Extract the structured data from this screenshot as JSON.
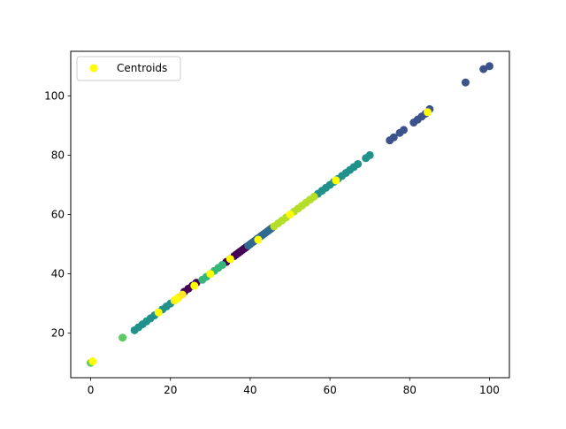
{
  "chart_data": {
    "type": "scatter",
    "title": "",
    "xlabel": "",
    "ylabel": "",
    "xlim": [
      -5,
      105
    ],
    "ylim": [
      5.0,
      115.0
    ],
    "xticks": [
      0,
      20,
      40,
      60,
      80,
      100
    ],
    "yticks": [
      20,
      40,
      60,
      80,
      100
    ],
    "grid": false,
    "legend": {
      "placement": "top-left",
      "entries": [
        "Centroids"
      ]
    },
    "series": [
      {
        "color": "#440154",
        "points": [
          [
            23.5,
            34.0
          ],
          [
            24.5,
            35.0
          ],
          [
            25.5,
            36.0
          ],
          [
            26.5,
            37.0
          ],
          [
            34.0,
            44.0
          ],
          [
            35.0,
            45.0
          ],
          [
            36.0,
            46.0
          ],
          [
            36.5,
            46.5
          ],
          [
            37.0,
            47.0
          ],
          [
            37.5,
            47.5
          ],
          [
            38.0,
            48.0
          ],
          [
            38.5,
            48.5
          ],
          [
            39.0,
            49.0
          ]
        ]
      },
      {
        "color": "#3b528b",
        "points": [
          [
            75.0,
            85.0
          ],
          [
            76.0,
            86.0
          ],
          [
            77.5,
            87.5
          ],
          [
            78.5,
            88.5
          ],
          [
            81.0,
            91.0
          ],
          [
            82.0,
            92.0
          ],
          [
            83.0,
            93.0
          ],
          [
            84.0,
            94.0
          ],
          [
            85.0,
            95.5
          ],
          [
            94.0,
            104.5
          ],
          [
            98.5,
            109.0
          ],
          [
            100.0,
            110.0
          ]
        ]
      },
      {
        "color": "#31688e",
        "points": [
          [
            39.5,
            49.5
          ],
          [
            40.0,
            50.0
          ],
          [
            40.5,
            50.5
          ],
          [
            41.0,
            51.0
          ],
          [
            41.5,
            51.5
          ],
          [
            42.0,
            52.0
          ],
          [
            42.5,
            52.5
          ],
          [
            43.0,
            53.0
          ],
          [
            43.5,
            53.5
          ],
          [
            44.0,
            54.0
          ],
          [
            44.5,
            54.5
          ],
          [
            45.0,
            55.0
          ],
          [
            45.5,
            55.5
          ]
        ]
      },
      {
        "color": "#21918c",
        "points": [
          [
            11.0,
            21.0
          ],
          [
            12.0,
            22.0
          ],
          [
            13.0,
            23.0
          ],
          [
            14.0,
            24.0
          ],
          [
            15.0,
            25.0
          ],
          [
            16.0,
            26.0
          ],
          [
            17.0,
            27.0
          ],
          [
            18.0,
            28.0
          ],
          [
            19.0,
            29.0
          ],
          [
            20.0,
            30.0
          ],
          [
            57.0,
            67.0
          ],
          [
            58.0,
            68.0
          ],
          [
            59.0,
            69.0
          ],
          [
            60.0,
            70.0
          ],
          [
            61.0,
            71.0
          ],
          [
            62.0,
            72.0
          ],
          [
            63.0,
            73.0
          ],
          [
            64.0,
            74.0
          ],
          [
            65.0,
            75.0
          ],
          [
            66.0,
            76.0
          ],
          [
            67.0,
            77.0
          ],
          [
            69.0,
            79.0
          ],
          [
            70.0,
            80.0
          ]
        ]
      },
      {
        "color": "#35b779",
        "points": [
          [
            28.0,
            38.0
          ],
          [
            29.0,
            39.0
          ],
          [
            30.0,
            40.0
          ],
          [
            31.0,
            41.0
          ],
          [
            32.0,
            42.0
          ],
          [
            33.0,
            43.0
          ]
        ]
      },
      {
        "color": "#5ec962",
        "points": [
          [
            0.0,
            10.0
          ],
          [
            8.0,
            18.5
          ]
        ]
      },
      {
        "color": "#b5de2b",
        "points": [
          [
            46.0,
            56.0
          ],
          [
            47.0,
            57.0
          ],
          [
            48.0,
            58.0
          ],
          [
            49.0,
            59.0
          ],
          [
            50.0,
            60.0
          ],
          [
            51.0,
            61.0
          ],
          [
            52.0,
            62.0
          ],
          [
            53.0,
            63.0
          ],
          [
            54.0,
            64.0
          ],
          [
            55.0,
            65.0
          ],
          [
            56.0,
            66.0
          ]
        ]
      },
      {
        "color": "#fde725",
        "points": [
          [
            21.0,
            31.0
          ],
          [
            22.0,
            32.0
          ],
          [
            23.0,
            33.0
          ]
        ]
      }
    ],
    "centroids": {
      "name": "Centroids",
      "color": "#ffff00",
      "points": [
        [
          0.5,
          10.5
        ],
        [
          17.0,
          27.0
        ],
        [
          21.5,
          31.5
        ],
        [
          26.0,
          36.0
        ],
        [
          30.0,
          40.0
        ],
        [
          35.0,
          45.0
        ],
        [
          42.0,
          51.5
        ],
        [
          50.0,
          60.0
        ],
        [
          61.5,
          71.5
        ],
        [
          84.5,
          94.5
        ]
      ]
    }
  }
}
